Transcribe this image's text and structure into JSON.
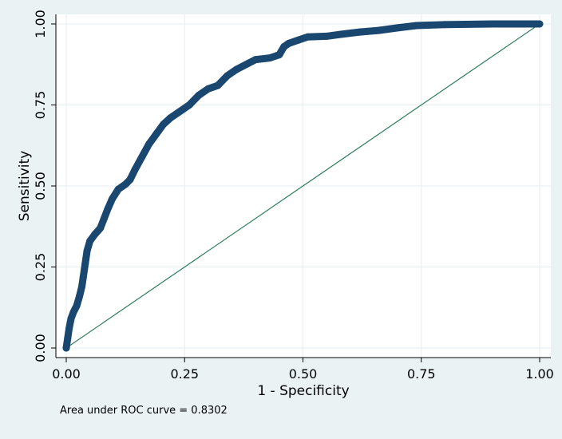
{
  "chart_data": {
    "type": "line",
    "xlabel": "1 - Specificity",
    "ylabel": "Sensitivity",
    "xlim": [
      0,
      1
    ],
    "ylim": [
      0,
      1
    ],
    "x_ticks": [
      "0.00",
      "0.25",
      "0.50",
      "0.75",
      "1.00"
    ],
    "y_ticks": [
      "0.00",
      "0.25",
      "0.50",
      "0.75",
      "1.00"
    ],
    "grid": true,
    "annotation": "Area under ROC curve = 0.8302",
    "colors": {
      "curve": "#1a476f",
      "reference": "#2e7d5b",
      "plot_bg": "#ffffff",
      "outer_bg": "#eaf2f3",
      "grid": "#e6eef0"
    },
    "series": [
      {
        "points": [
          [
            0.0,
            0.0
          ],
          [
            0.003,
            0.03
          ],
          [
            0.006,
            0.06
          ],
          [
            0.01,
            0.09
          ],
          [
            0.015,
            0.11
          ],
          [
            0.022,
            0.13
          ],
          [
            0.028,
            0.16
          ],
          [
            0.033,
            0.19
          ],
          [
            0.036,
            0.22
          ],
          [
            0.04,
            0.26
          ],
          [
            0.044,
            0.3
          ],
          [
            0.05,
            0.33
          ],
          [
            0.06,
            0.35
          ],
          [
            0.072,
            0.37
          ],
          [
            0.08,
            0.4
          ],
          [
            0.088,
            0.43
          ],
          [
            0.097,
            0.46
          ],
          [
            0.11,
            0.49
          ],
          [
            0.125,
            0.505
          ],
          [
            0.135,
            0.52
          ],
          [
            0.145,
            0.55
          ],
          [
            0.16,
            0.59
          ],
          [
            0.175,
            0.63
          ],
          [
            0.19,
            0.66
          ],
          [
            0.205,
            0.69
          ],
          [
            0.22,
            0.71
          ],
          [
            0.24,
            0.73
          ],
          [
            0.26,
            0.75
          ],
          [
            0.28,
            0.78
          ],
          [
            0.3,
            0.8
          ],
          [
            0.32,
            0.81
          ],
          [
            0.34,
            0.84
          ],
          [
            0.36,
            0.86
          ],
          [
            0.38,
            0.875
          ],
          [
            0.4,
            0.89
          ],
          [
            0.43,
            0.895
          ],
          [
            0.45,
            0.905
          ],
          [
            0.46,
            0.93
          ],
          [
            0.47,
            0.94
          ],
          [
            0.49,
            0.95
          ],
          [
            0.51,
            0.96
          ],
          [
            0.55,
            0.962
          ],
          [
            0.58,
            0.968
          ],
          [
            0.62,
            0.975
          ],
          [
            0.66,
            0.98
          ],
          [
            0.7,
            0.988
          ],
          [
            0.74,
            0.995
          ],
          [
            0.8,
            0.998
          ],
          [
            0.9,
            1.0
          ],
          [
            1.0,
            1.0
          ]
        ]
      },
      {
        "points": [
          [
            0,
            0
          ],
          [
            1,
            1
          ]
        ]
      }
    ]
  }
}
